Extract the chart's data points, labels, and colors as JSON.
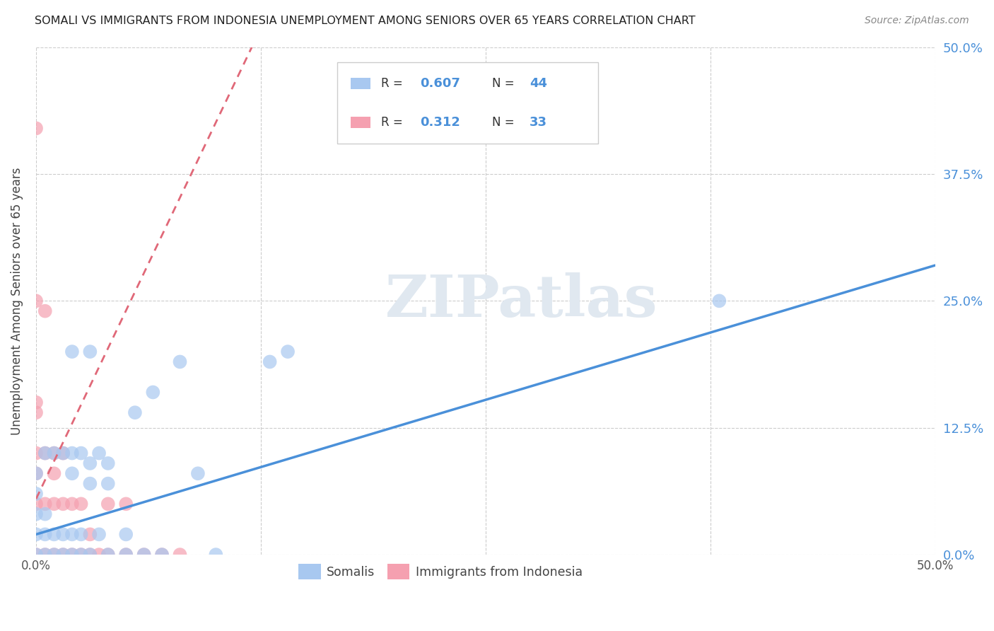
{
  "title": "SOMALI VS IMMIGRANTS FROM INDONESIA UNEMPLOYMENT AMONG SENIORS OVER 65 YEARS CORRELATION CHART",
  "source": "Source: ZipAtlas.com",
  "ylabel": "Unemployment Among Seniors over 65 years",
  "xlim": [
    0,
    0.5
  ],
  "ylim": [
    0,
    0.5
  ],
  "watermark": "ZIPatlas",
  "somali_R": 0.607,
  "somali_N": 44,
  "indonesia_R": 0.312,
  "indonesia_N": 33,
  "somali_color": "#a8c8f0",
  "indonesia_color": "#f5a0b0",
  "somali_line_color": "#4a90d9",
  "indonesia_line_color": "#e06878",
  "grid_color": "#cccccc",
  "somali_x": [
    0.0,
    0.0,
    0.0,
    0.0,
    0.0,
    0.005,
    0.005,
    0.005,
    0.005,
    0.01,
    0.01,
    0.01,
    0.015,
    0.015,
    0.015,
    0.02,
    0.02,
    0.02,
    0.02,
    0.025,
    0.025,
    0.025,
    0.03,
    0.03,
    0.03,
    0.035,
    0.035,
    0.04,
    0.04,
    0.04,
    0.05,
    0.05,
    0.055,
    0.06,
    0.065,
    0.07,
    0.08,
    0.09,
    0.1,
    0.13,
    0.14,
    0.38,
    0.02,
    0.03
  ],
  "somali_y": [
    0.0,
    0.02,
    0.04,
    0.06,
    0.08,
    0.0,
    0.02,
    0.04,
    0.1,
    0.0,
    0.02,
    0.1,
    0.0,
    0.02,
    0.1,
    0.0,
    0.02,
    0.08,
    0.1,
    0.0,
    0.02,
    0.1,
    0.0,
    0.07,
    0.09,
    0.02,
    0.1,
    0.0,
    0.07,
    0.09,
    0.0,
    0.02,
    0.14,
    0.0,
    0.16,
    0.0,
    0.19,
    0.08,
    0.0,
    0.19,
    0.2,
    0.25,
    0.2,
    0.2
  ],
  "indonesia_x": [
    0.0,
    0.0,
    0.0,
    0.0,
    0.0,
    0.0,
    0.0,
    0.005,
    0.005,
    0.005,
    0.005,
    0.01,
    0.01,
    0.01,
    0.01,
    0.015,
    0.015,
    0.015,
    0.02,
    0.02,
    0.025,
    0.025,
    0.03,
    0.03,
    0.035,
    0.04,
    0.04,
    0.05,
    0.05,
    0.06,
    0.07,
    0.08,
    0.0
  ],
  "indonesia_y": [
    0.0,
    0.05,
    0.08,
    0.1,
    0.14,
    0.15,
    0.25,
    0.0,
    0.05,
    0.1,
    0.24,
    0.0,
    0.05,
    0.08,
    0.1,
    0.0,
    0.05,
    0.1,
    0.0,
    0.05,
    0.0,
    0.05,
    0.0,
    0.02,
    0.0,
    0.0,
    0.05,
    0.0,
    0.05,
    0.0,
    0.0,
    0.0,
    0.42
  ],
  "somali_line_x0": 0.0,
  "somali_line_y0": 0.02,
  "somali_line_x1": 0.5,
  "somali_line_y1": 0.285,
  "indonesia_line_x0": 0.0,
  "indonesia_line_y0": 0.055,
  "indonesia_line_x1": 0.12,
  "indonesia_line_y1": 0.5
}
